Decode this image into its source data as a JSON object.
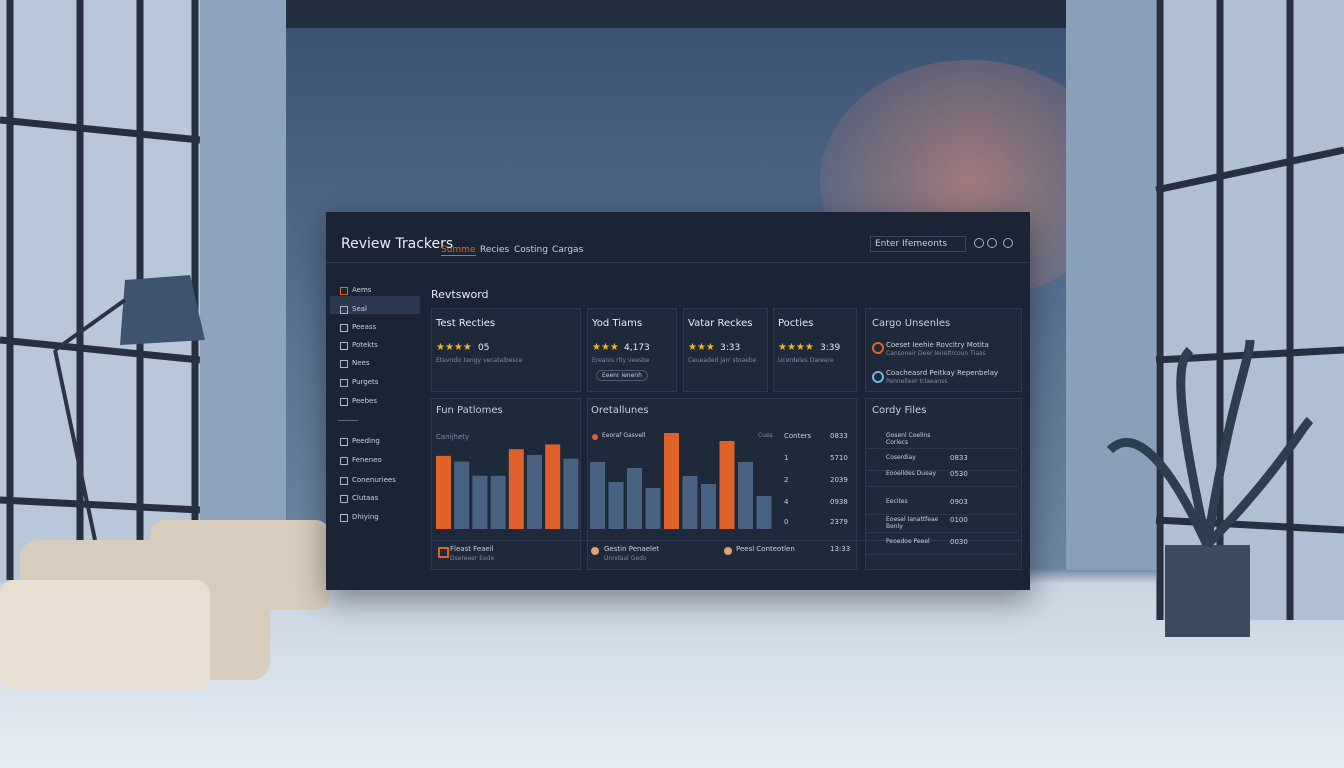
{
  "header": {
    "title": "Review Trackers",
    "tabs": [
      "Summe",
      "Recies",
      "Costing",
      "Cargas"
    ],
    "search": "Enter Ifemeonts"
  },
  "sidebar": {
    "top": [
      "Aems",
      "Seal",
      "Peeass",
      "Potekts",
      "Nees",
      "Purgets",
      "Peebes"
    ],
    "bottom": [
      "Peeding",
      "Feneneo",
      "Conenuriees",
      "Clutaas",
      "Dhiying"
    ]
  },
  "main_title": "Revtsword",
  "cards": [
    {
      "title": "Test Recties",
      "value": "05",
      "note": "Etevndic tengy vecatalbesce"
    },
    {
      "title": "Yod Tiams",
      "value": "4,173",
      "note": "Ereanis rtly veesbe",
      "button": "Eeenr Ienenh"
    },
    {
      "title": "Vatar Reckes",
      "value": "3:33",
      "note": "Ceueaded jarr stoaebe"
    },
    {
      "title": "Pocties",
      "value": "3:39",
      "note": "Ucerdeles Dareere"
    }
  ],
  "cargo": {
    "title": "Cargo Unsenles",
    "items": [
      {
        "label": "Coeset Ieehie Rovcitry Motita",
        "sub": "Cansoneir Deer Ieneltrcoun Tiaas"
      },
      {
        "label": "Coacheasrd Peitkay Repenbelay",
        "sub": "Pennelleer Iclaeanss"
      }
    ]
  },
  "fun_chart": {
    "title": "Fun Patlomes",
    "label": "Canijhety",
    "values": [
      77,
      71,
      56,
      56,
      84,
      78,
      89,
      74
    ],
    "colors": [
      "#e0622a",
      "#4a6282",
      "#4a6282",
      "#4a6282",
      "#e0622a",
      "#4a6282",
      "#e0622a",
      "#4a6282"
    ],
    "ylim": [
      0,
      100
    ]
  },
  "overall_chart": {
    "title": "Oretallunes",
    "legend": "Eeoraf Gasvell",
    "corner": "Cues",
    "values": [
      67,
      47,
      61,
      41,
      96,
      53,
      45,
      88,
      67,
      33
    ],
    "colors": [
      "#4a6282",
      "#4a6282",
      "#4a6282",
      "#4a6282",
      "#e0622a",
      "#4a6282",
      "#4a6282",
      "#e0622a",
      "#4a6282",
      "#4a6282"
    ],
    "ylim": [
      0,
      100
    ]
  },
  "counters": {
    "header": [
      "Conters",
      "0833"
    ],
    "rows": [
      [
        "1",
        "5710"
      ],
      [
        "2",
        "2039"
      ],
      [
        "4",
        "0938"
      ],
      [
        "0",
        "2379"
      ]
    ]
  },
  "files": {
    "title": "Cordy Files",
    "rows": [
      [
        "Gosenl Coelins Corlecs",
        ""
      ],
      [
        "Coserdiay",
        "0833"
      ],
      [
        "Eooelldes Dueay",
        "0530"
      ],
      [
        "Eecites",
        "0903"
      ],
      [
        "Eoesel Ianattfeae Benly",
        "0100"
      ],
      [
        "Peoedoe Peeel",
        "0030"
      ]
    ]
  },
  "bottom": [
    {
      "label": "Fleast Feaeil",
      "sub": "Dsereeer Eede"
    },
    {
      "label": "Gestin Penaelet",
      "sub": "Unndaal Gedo"
    },
    {
      "label": "Peesl Conteotlen",
      "value": "13:33"
    }
  ]
}
